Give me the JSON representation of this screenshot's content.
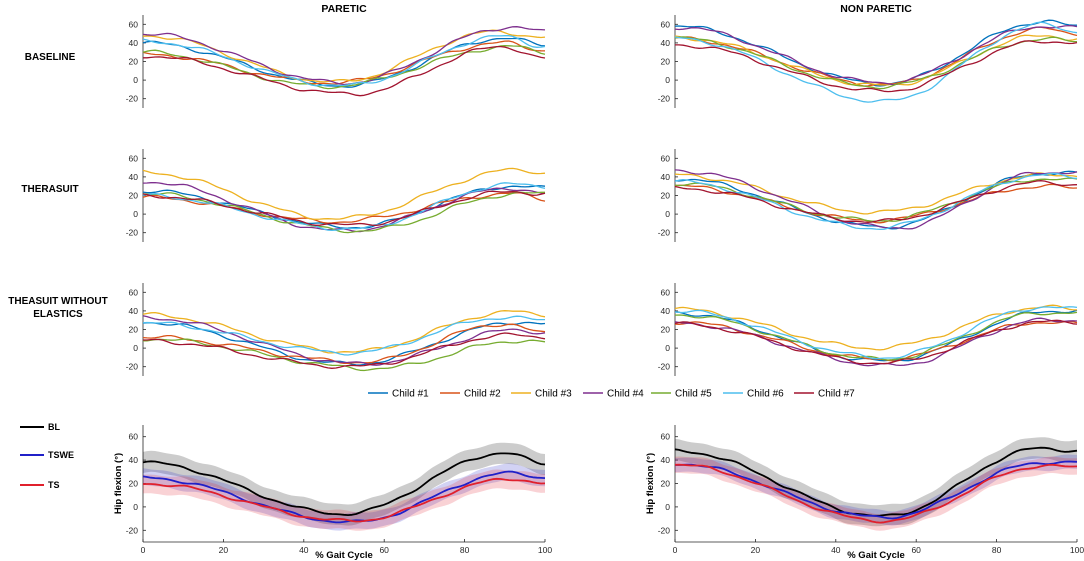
{
  "chart_data": {
    "type": "line",
    "column_titles": [
      "PARETIC",
      "NON PARETIC"
    ],
    "row_labels": [
      [
        "BASELINE"
      ],
      [
        "THERASUIT"
      ],
      [
        "THEASUIT WITHOUT",
        "ELASTICS"
      ]
    ],
    "xlim": [
      0,
      100
    ],
    "ylim": [
      -30,
      70
    ],
    "yticks": [
      -20,
      0,
      20,
      40,
      60
    ],
    "xticks": [
      0,
      20,
      40,
      60,
      80,
      100
    ],
    "x_label": "% Gait Cycle",
    "y_label": "Hip flexion (°)",
    "children": [
      {
        "name": "Child #1",
        "color": "#0072BD"
      },
      {
        "name": "Child #2",
        "color": "#D95319"
      },
      {
        "name": "Child #3",
        "color": "#EDB120"
      },
      {
        "name": "Child #4",
        "color": "#7E2F8E"
      },
      {
        "name": "Child #5",
        "color": "#77AC30"
      },
      {
        "name": "Child #6",
        "color": "#4DBEEE"
      },
      {
        "name": "Child #7",
        "color": "#A2142F"
      }
    ],
    "individual_panels": [
      {
        "row": 0,
        "col": 0,
        "series": [
          {
            "child": 0,
            "start": 40,
            "min": -6,
            "min_x": 50,
            "peak": 45,
            "peak_x": 90,
            "end": 38
          },
          {
            "child": 1,
            "start": 28,
            "min": -3,
            "min_x": 47,
            "peak": 40,
            "peak_x": 90,
            "end": 32
          },
          {
            "child": 2,
            "start": 48,
            "min": -2,
            "min_x": 48,
            "peak": 52,
            "peak_x": 88,
            "end": 46
          },
          {
            "child": 3,
            "start": 50,
            "min": -3,
            "min_x": 50,
            "peak": 57,
            "peak_x": 92,
            "end": 52
          },
          {
            "child": 4,
            "start": 30,
            "min": -7,
            "min_x": 46,
            "peak": 36,
            "peak_x": 92,
            "end": 30
          },
          {
            "child": 5,
            "start": 42,
            "min": -6,
            "min_x": 50,
            "peak": 47,
            "peak_x": 90,
            "end": 36
          },
          {
            "child": 6,
            "start": 26,
            "min": -15,
            "min_x": 52,
            "peak": 36,
            "peak_x": 90,
            "end": 23
          }
        ]
      },
      {
        "row": 0,
        "col": 1,
        "series": [
          {
            "child": 0,
            "start": 58,
            "min": -4,
            "min_x": 52,
            "peak": 63,
            "peak_x": 92,
            "end": 58
          },
          {
            "child": 1,
            "start": 45,
            "min": -5,
            "min_x": 52,
            "peak": 55,
            "peak_x": 92,
            "end": 50
          },
          {
            "child": 2,
            "start": 46,
            "min": -6,
            "min_x": 52,
            "peak": 48,
            "peak_x": 92,
            "end": 44
          },
          {
            "child": 3,
            "start": 57,
            "min": -3,
            "min_x": 52,
            "peak": 58,
            "peak_x": 92,
            "end": 56
          },
          {
            "child": 4,
            "start": 45,
            "min": -7,
            "min_x": 51,
            "peak": 44,
            "peak_x": 92,
            "end": 42
          },
          {
            "child": 5,
            "start": 45,
            "min": -23,
            "min_x": 52,
            "peak": 60,
            "peak_x": 92,
            "end": 52
          },
          {
            "child": 6,
            "start": 38,
            "min": -12,
            "min_x": 52,
            "peak": 42,
            "peak_x": 92,
            "end": 40
          }
        ]
      },
      {
        "row": 1,
        "col": 0,
        "series": [
          {
            "child": 0,
            "start": 25,
            "min": -14,
            "min_x": 52,
            "peak": 30,
            "peak_x": 92,
            "end": 28
          },
          {
            "child": 1,
            "start": 18,
            "min": -8,
            "min_x": 48,
            "peak": 22,
            "peak_x": 92,
            "end": 16
          },
          {
            "child": 2,
            "start": 45,
            "min": -5,
            "min_x": 48,
            "peak": 48,
            "peak_x": 94,
            "end": 44
          },
          {
            "child": 3,
            "start": 35,
            "min": -18,
            "min_x": 50,
            "peak": 28,
            "peak_x": 92,
            "end": 22
          },
          {
            "child": 4,
            "start": 22,
            "min": -18,
            "min_x": 54,
            "peak": 22,
            "peak_x": 94,
            "end": 22
          },
          {
            "child": 5,
            "start": 20,
            "min": -16,
            "min_x": 52,
            "peak": 32,
            "peak_x": 92,
            "end": 30
          },
          {
            "child": 6,
            "start": 20,
            "min": -12,
            "min_x": 52,
            "peak": 24,
            "peak_x": 92,
            "end": 22
          }
        ]
      },
      {
        "row": 1,
        "col": 1,
        "series": [
          {
            "child": 0,
            "start": 38,
            "min": -14,
            "min_x": 52,
            "peak": 44,
            "peak_x": 92,
            "end": 44
          },
          {
            "child": 1,
            "start": 30,
            "min": -7,
            "min_x": 50,
            "peak": 30,
            "peak_x": 92,
            "end": 28
          },
          {
            "child": 2,
            "start": 42,
            "min": 2,
            "min_x": 50,
            "peak": 42,
            "peak_x": 92,
            "end": 42
          },
          {
            "child": 3,
            "start": 47,
            "min": -15,
            "min_x": 55,
            "peak": 45,
            "peak_x": 92,
            "end": 45
          },
          {
            "child": 4,
            "start": 33,
            "min": -7,
            "min_x": 50,
            "peak": 38,
            "peak_x": 92,
            "end": 36
          },
          {
            "child": 5,
            "start": 35,
            "min": -15,
            "min_x": 50,
            "peak": 42,
            "peak_x": 92,
            "end": 40
          },
          {
            "child": 6,
            "start": 28,
            "min": -8,
            "min_x": 50,
            "peak": 34,
            "peak_x": 92,
            "end": 32
          }
        ]
      },
      {
        "row": 2,
        "col": 0,
        "series": [
          {
            "child": 0,
            "start": 28,
            "min": -17,
            "min_x": 52,
            "peak": 28,
            "peak_x": 94,
            "end": 26
          },
          {
            "child": 1,
            "start": 12,
            "min": -15,
            "min_x": 55,
            "peak": 26,
            "peak_x": 90,
            "end": 16
          },
          {
            "child": 2,
            "start": 36,
            "min": -4,
            "min_x": 52,
            "peak": 39,
            "peak_x": 92,
            "end": 36
          },
          {
            "child": 3,
            "start": 33,
            "min": -17,
            "min_x": 55,
            "peak": 20,
            "peak_x": 94,
            "end": 16
          },
          {
            "child": 4,
            "start": 10,
            "min": -22,
            "min_x": 58,
            "peak": 8,
            "peak_x": 94,
            "end": 6
          },
          {
            "child": 5,
            "start": 27,
            "min": -5,
            "min_x": 52,
            "peak": 33,
            "peak_x": 90,
            "end": 30
          },
          {
            "child": 6,
            "start": 8,
            "min": -20,
            "min_x": 52,
            "peak": 14,
            "peak_x": 92,
            "end": 12
          }
        ]
      },
      {
        "row": 2,
        "col": 1,
        "series": [
          {
            "child": 0,
            "start": 38,
            "min": -14,
            "min_x": 52,
            "peak": 40,
            "peak_x": 94,
            "end": 40
          },
          {
            "child": 1,
            "start": 28,
            "min": -12,
            "min_x": 52,
            "peak": 28,
            "peak_x": 92,
            "end": 26
          },
          {
            "child": 2,
            "start": 42,
            "min": 0,
            "min_x": 50,
            "peak": 44,
            "peak_x": 92,
            "end": 42
          },
          {
            "child": 3,
            "start": 27,
            "min": -19,
            "min_x": 54,
            "peak": 30,
            "peak_x": 92,
            "end": 30
          },
          {
            "child": 4,
            "start": 36,
            "min": -12,
            "min_x": 52,
            "peak": 38,
            "peak_x": 92,
            "end": 38
          },
          {
            "child": 5,
            "start": 40,
            "min": -10,
            "min_x": 52,
            "peak": 44,
            "peak_x": 92,
            "end": 42
          },
          {
            "child": 6,
            "start": 26,
            "min": -16,
            "min_x": 52,
            "peak": 28,
            "peak_x": 92,
            "end": 28
          }
        ]
      }
    ],
    "summary_legend": [
      {
        "label": "BL",
        "color": "#000000"
      },
      {
        "label": "TSWE",
        "color": "#2020C8"
      },
      {
        "label": "TS",
        "color": "#E0202C"
      }
    ],
    "summary_panels": [
      {
        "col": 0,
        "series": [
          {
            "label": "BL",
            "start": 38,
            "min": -6,
            "min_x": 50,
            "peak": 46,
            "peak_x": 90,
            "end": 37,
            "sd": 9
          },
          {
            "label": "TSWE",
            "start": 25,
            "min": -13,
            "min_x": 52,
            "peak": 29,
            "peak_x": 92,
            "end": 25,
            "sd": 7
          },
          {
            "label": "TS",
            "start": 20,
            "min": -12,
            "min_x": 52,
            "peak": 24,
            "peak_x": 92,
            "end": 20,
            "sd": 8
          }
        ]
      },
      {
        "col": 1,
        "series": [
          {
            "label": "BL",
            "start": 48,
            "min": -8,
            "min_x": 52,
            "peak": 50,
            "peak_x": 91,
            "end": 48,
            "sd": 9
          },
          {
            "label": "TSWE",
            "start": 37,
            "min": -9,
            "min_x": 52,
            "peak": 38,
            "peak_x": 92,
            "end": 38,
            "sd": 6
          },
          {
            "label": "TS",
            "start": 36,
            "min": -12,
            "min_x": 52,
            "peak": 35,
            "peak_x": 92,
            "end": 34,
            "sd": 7
          }
        ]
      }
    ]
  }
}
